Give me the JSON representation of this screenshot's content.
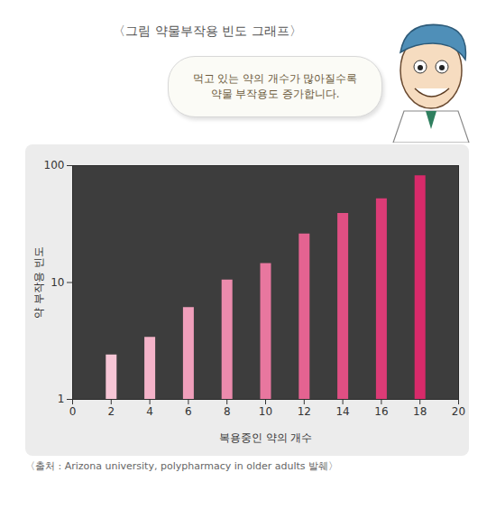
{
  "chart_data": {
    "type": "bar",
    "title": "〈그림 약물부작용 빈도 그래프〉",
    "annotations": [
      "먹고 있는 약의 개수가 많아질수록",
      "약물 부작용도 증가합니다."
    ],
    "caption": "〈출처 : Arizona university, polypharmacy in older adults 발췌〉",
    "x_label": "복용중인 약의 개수",
    "y_label": "약 부작용 빈도",
    "x": [
      2,
      4,
      6,
      8,
      10,
      12,
      14,
      16,
      18
    ],
    "values": [
      2.4,
      3.4,
      6.1,
      10.5,
      14.5,
      26,
      39,
      52,
      82
    ],
    "colors": [
      "#f7c6d6",
      "#f4b3c9",
      "#f09fbb",
      "#ec8bad",
      "#e8779f",
      "#e46391",
      "#e04f83",
      "#dc3b76",
      "#d82a6a"
    ],
    "xlim": [
      0,
      20
    ],
    "xticks": [
      0,
      2,
      4,
      6,
      8,
      10,
      12,
      14,
      16,
      18,
      20
    ],
    "ylim": [
      1,
      100
    ],
    "yticks": [
      1,
      10,
      100
    ],
    "log": "y",
    "grid": false
  }
}
